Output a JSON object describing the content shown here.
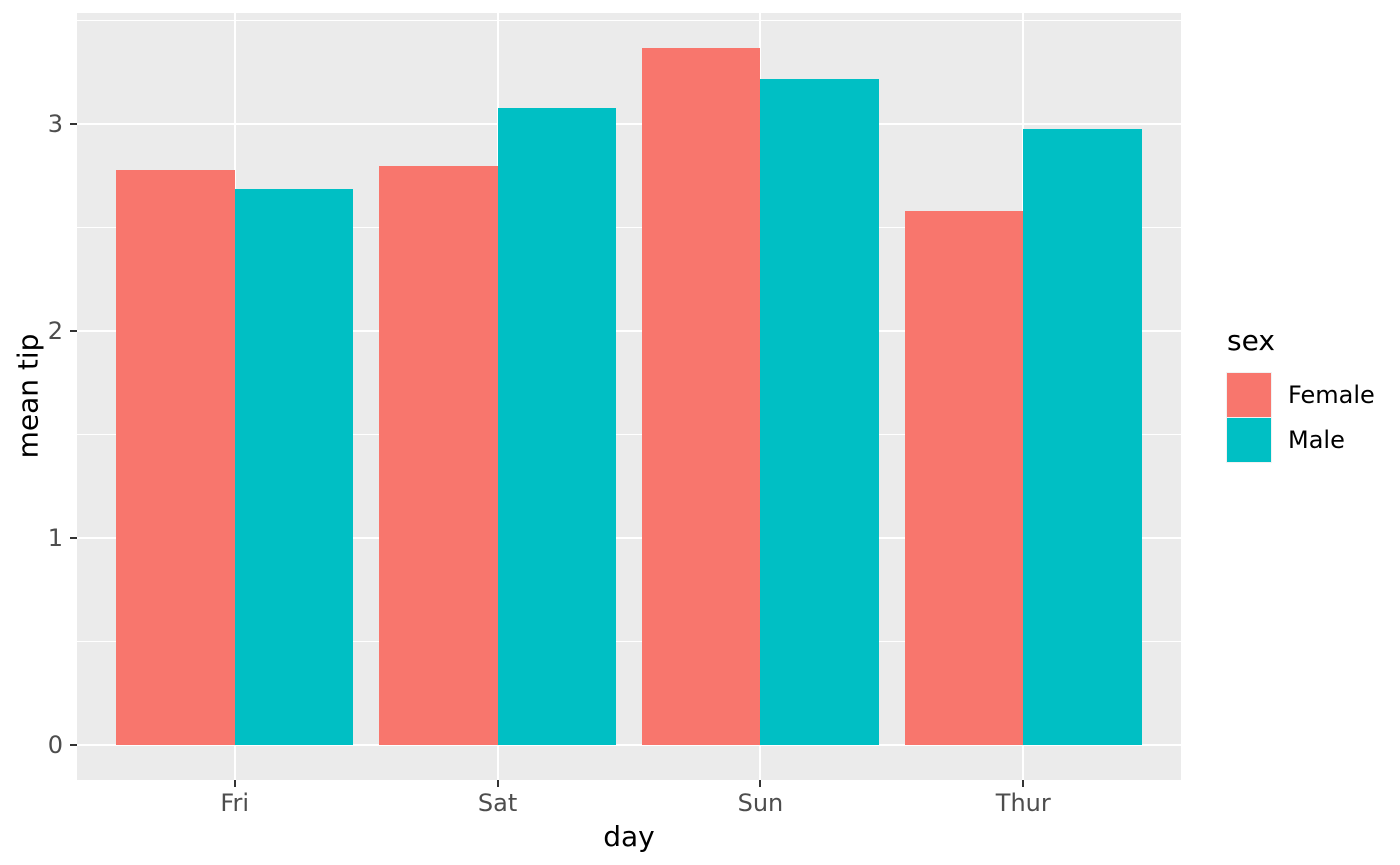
{
  "figure": {
    "background": "#FFFFFF",
    "panel_background": "#EBEBEB",
    "grid_color": "#FFFFFF",
    "tick_mark_color": "#333333",
    "tick_label_color": "#4D4D4D",
    "axis_title_color": "#000000"
  },
  "chart_data": {
    "type": "bar",
    "title": "",
    "xlabel": "day",
    "ylabel": "mean tip",
    "categories": [
      "Fri",
      "Sat",
      "Sun",
      "Thur"
    ],
    "series": [
      {
        "name": "Female",
        "color": "#F8766D",
        "values": [
          2.78,
          2.8,
          3.37,
          2.58
        ]
      },
      {
        "name": "Male",
        "color": "#00BFC4",
        "values": [
          2.69,
          3.08,
          3.22,
          2.98
        ]
      }
    ],
    "ylim": [
      0,
      3.54
    ],
    "yticks": [
      0,
      1,
      2,
      3
    ],
    "yticks_minor": [
      0.5,
      1.5,
      2.5,
      3.5
    ],
    "grid": "on",
    "legend": {
      "title": "sex",
      "position": "right",
      "entries": [
        "Female",
        "Male"
      ]
    },
    "bar_style": {
      "dodge_width": 0.9,
      "category_expand": 0.6,
      "y_expand_mult": 0.05
    }
  }
}
